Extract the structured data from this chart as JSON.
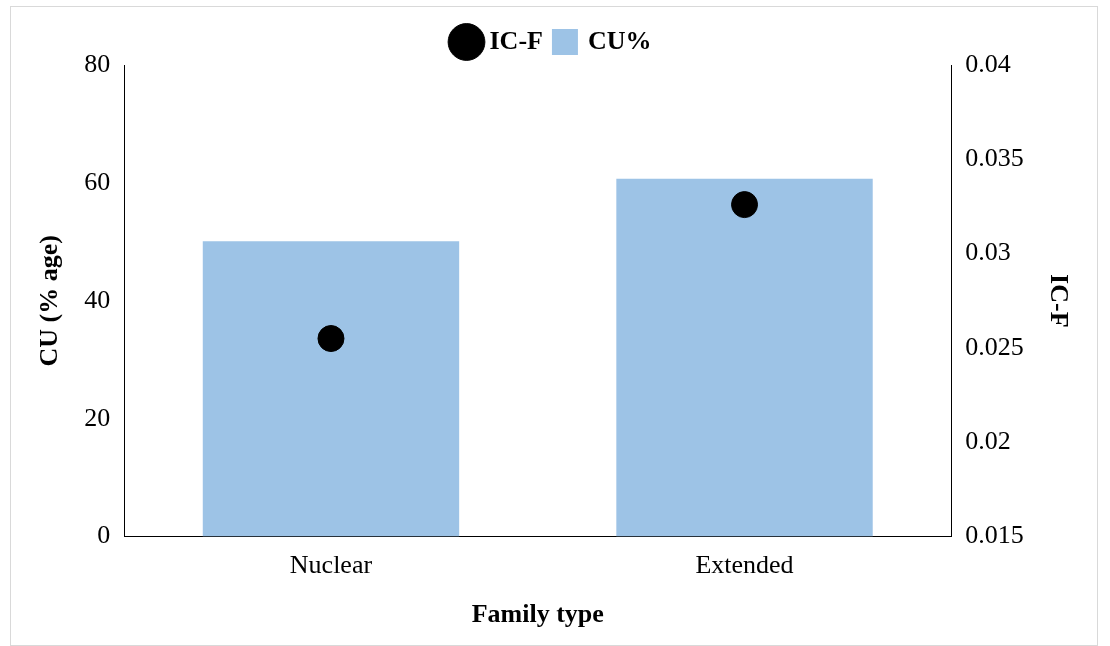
{
  "chart_data": {
    "type": "bar",
    "xlabel": "Family type",
    "ylabel": "CU (% age)",
    "y2label": "IC-F",
    "categories": [
      "Nuclear",
      "Extended"
    ],
    "series": [
      {
        "name": "CU%",
        "color": "#9dc3e6",
        "values": [
          50.1,
          60.7
        ]
      },
      {
        "name": "IC-F",
        "type": "scatter",
        "axis": "y2",
        "color": "#000000",
        "marker": "circle",
        "values": [
          0.0255,
          0.0326
        ]
      }
    ],
    "ylim": [
      0,
      80
    ],
    "yticks": [
      0,
      20,
      40,
      60,
      80
    ],
    "y2lim": [
      0.015,
      0.04
    ],
    "y2ticks": [
      0.015,
      0.02,
      0.025,
      0.03,
      0.035,
      0.04
    ],
    "grid": false,
    "legend": "top"
  }
}
